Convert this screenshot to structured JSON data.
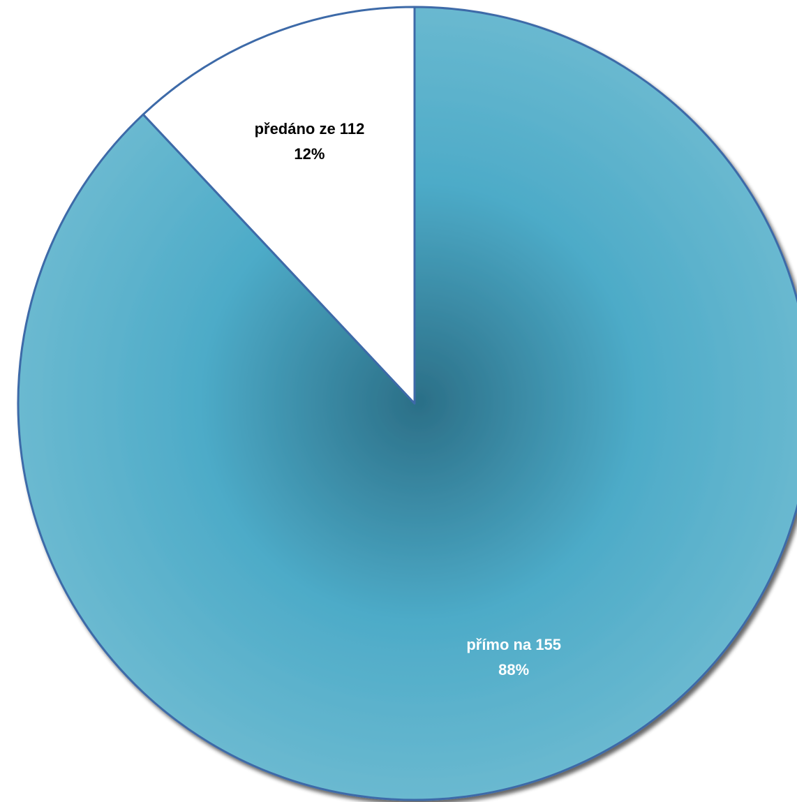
{
  "chart_data": {
    "type": "pie",
    "title": "",
    "slices": [
      {
        "label": "přímo na 155",
        "value": 88,
        "value_label": "88%",
        "color": "#4bacc6",
        "label_color": "#ffffff"
      },
      {
        "label": "předáno ze 112",
        "value": 12,
        "value_label": "12%",
        "color": "#ffffff",
        "label_color": "#000000"
      }
    ],
    "start_angle_deg": 0,
    "direction": "clockwise",
    "outline_color": "#3e6aa8",
    "legend": "none"
  }
}
